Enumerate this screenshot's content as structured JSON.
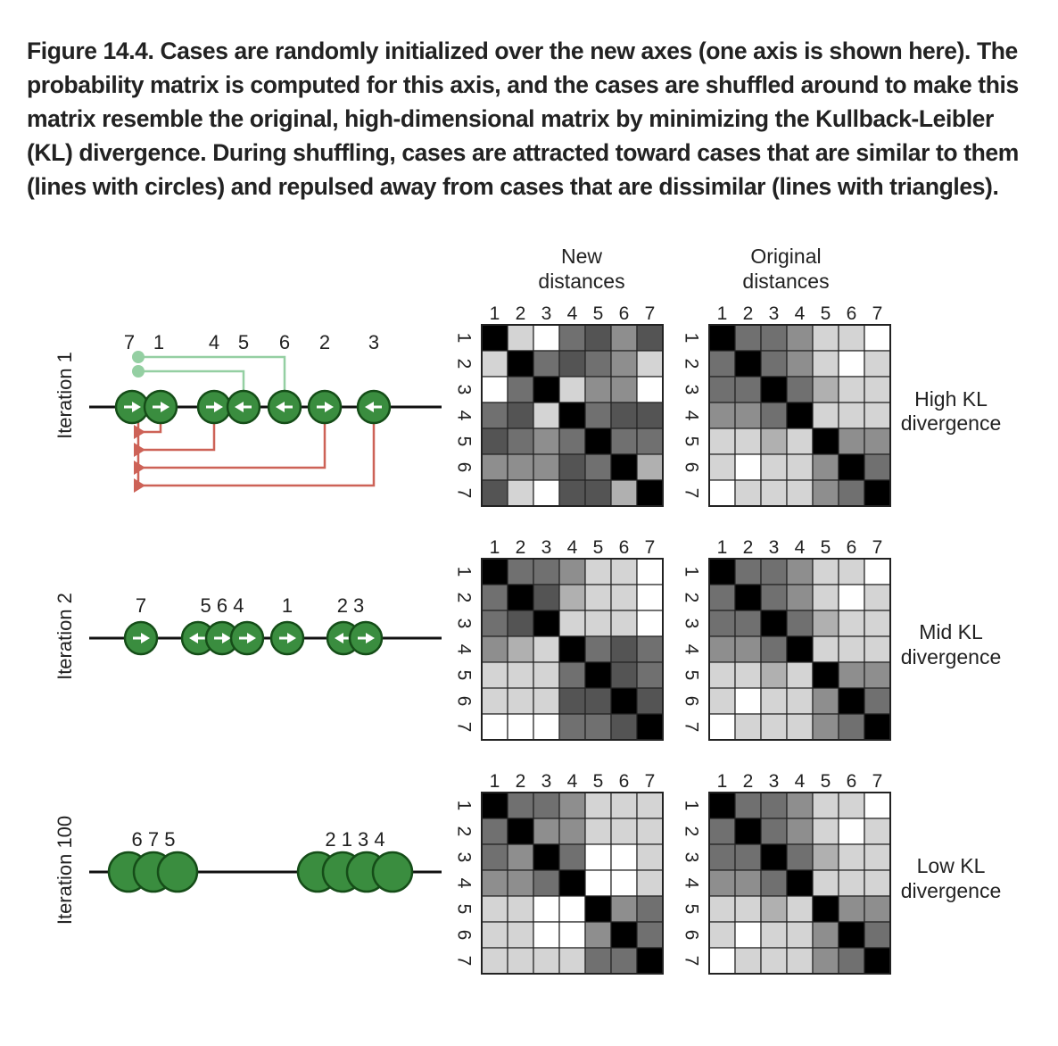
{
  "caption": "Figure 14.4. Cases are randomly initialized over the new axes (one axis is shown here). The probability matrix is computed for this axis, and the cases are shuffled around to make this matrix resemble the original, high-dimensional matrix by minimizing the Kullback-Leibler (KL) divergence. During shuffling, cases are attracted toward cases that are similar to them (lines with circles) and repulsed away from cases that are dissimilar (lines with triangles).",
  "headers": {
    "new": [
      "New",
      "distances"
    ],
    "original": [
      "Original",
      "distances"
    ]
  },
  "matrix_indices": [
    "1",
    "2",
    "3",
    "4",
    "5",
    "6",
    "7"
  ],
  "colors": {
    "node_fill": "#3a8d3f",
    "node_stroke": "#154d18",
    "arrow": "#ffffff",
    "attract_line": "#94cfa2",
    "repulse_line": "#cd6257",
    "axis": "#111111"
  },
  "shade_palette": [
    "#000000",
    "#545454",
    "#707070",
    "#8e8e8e",
    "#b0b0b0",
    "#d4d4d4",
    "#ffffff"
  ],
  "rows": [
    {
      "label": "Iteration 1",
      "divergence": [
        "High KL",
        "divergence"
      ],
      "top_labels": [
        "7",
        "1",
        "4",
        "5",
        "6",
        "2",
        "3"
      ],
      "nodes": [
        {
          "case": "7",
          "arrow": "right"
        },
        {
          "case": "1",
          "arrow": "right"
        },
        {
          "case": "4",
          "arrow": "right"
        },
        {
          "case": "5",
          "arrow": "left"
        },
        {
          "case": "6",
          "arrow": "left"
        },
        {
          "case": "2",
          "arrow": "right"
        },
        {
          "case": "3",
          "arrow": "left"
        }
      ],
      "new_matrix": [
        [
          0,
          5,
          6,
          2,
          1,
          3,
          1
        ],
        [
          5,
          0,
          2,
          1,
          2,
          3,
          5
        ],
        [
          6,
          2,
          0,
          5,
          3,
          3,
          6
        ],
        [
          2,
          1,
          5,
          0,
          2,
          1,
          1
        ],
        [
          1,
          2,
          3,
          2,
          0,
          2,
          2
        ],
        [
          3,
          3,
          3,
          1,
          2,
          0,
          4
        ],
        [
          1,
          5,
          6,
          1,
          1,
          4,
          0
        ]
      ],
      "original_matrix": [
        [
          0,
          2,
          2,
          3,
          5,
          5,
          6
        ],
        [
          2,
          0,
          2,
          3,
          5,
          6,
          5
        ],
        [
          2,
          2,
          0,
          2,
          4,
          5,
          5
        ],
        [
          3,
          3,
          2,
          0,
          5,
          5,
          5
        ],
        [
          5,
          5,
          4,
          5,
          0,
          3,
          3
        ],
        [
          5,
          6,
          5,
          5,
          3,
          0,
          2
        ],
        [
          6,
          5,
          5,
          5,
          3,
          2,
          0
        ]
      ]
    },
    {
      "label": "Iteration 2",
      "divergence": [
        "Mid KL",
        "divergence"
      ],
      "top_labels": [
        "7",
        "5 6 4",
        "1",
        "2 3"
      ],
      "nodes": [
        {
          "case": "7",
          "arrow": "right"
        },
        {
          "case": "5",
          "arrow": "left"
        },
        {
          "case": "6",
          "arrow": "right"
        },
        {
          "case": "4",
          "arrow": "right"
        },
        {
          "case": "1",
          "arrow": "right"
        },
        {
          "case": "2",
          "arrow": "left"
        },
        {
          "case": "3",
          "arrow": "right"
        }
      ],
      "new_matrix": [
        [
          0,
          2,
          2,
          3,
          5,
          5,
          6
        ],
        [
          2,
          0,
          1,
          4,
          5,
          5,
          6
        ],
        [
          2,
          1,
          0,
          5,
          5,
          5,
          6
        ],
        [
          3,
          4,
          5,
          0,
          2,
          1,
          2
        ],
        [
          5,
          5,
          5,
          2,
          0,
          1,
          2
        ],
        [
          5,
          5,
          5,
          1,
          1,
          0,
          1
        ],
        [
          6,
          6,
          6,
          2,
          2,
          1,
          0
        ]
      ],
      "original_matrix": [
        [
          0,
          2,
          2,
          3,
          5,
          5,
          6
        ],
        [
          2,
          0,
          2,
          3,
          5,
          6,
          5
        ],
        [
          2,
          2,
          0,
          2,
          4,
          5,
          5
        ],
        [
          3,
          3,
          2,
          0,
          5,
          5,
          5
        ],
        [
          5,
          5,
          4,
          5,
          0,
          3,
          3
        ],
        [
          5,
          6,
          5,
          5,
          3,
          0,
          2
        ],
        [
          6,
          5,
          5,
          5,
          3,
          2,
          0
        ]
      ]
    },
    {
      "label": "Iteration 100",
      "divergence": [
        "Low KL",
        "divergence"
      ],
      "top_labels": [
        "6 7 5",
        "2 1 3 4"
      ],
      "nodes": [
        {
          "case": "6",
          "arrow": "none"
        },
        {
          "case": "7",
          "arrow": "none"
        },
        {
          "case": "5",
          "arrow": "none"
        },
        {
          "case": "2",
          "arrow": "none"
        },
        {
          "case": "1",
          "arrow": "none"
        },
        {
          "case": "3",
          "arrow": "none"
        },
        {
          "case": "4",
          "arrow": "none"
        }
      ],
      "new_matrix": [
        [
          0,
          2,
          2,
          3,
          5,
          5,
          5
        ],
        [
          2,
          0,
          3,
          3,
          5,
          5,
          5
        ],
        [
          2,
          3,
          0,
          2,
          6,
          6,
          5
        ],
        [
          3,
          3,
          2,
          0,
          6,
          6,
          5
        ],
        [
          5,
          5,
          6,
          6,
          0,
          3,
          2
        ],
        [
          5,
          5,
          6,
          6,
          3,
          0,
          2
        ],
        [
          5,
          5,
          5,
          5,
          2,
          2,
          0
        ]
      ],
      "original_matrix": [
        [
          0,
          2,
          2,
          3,
          5,
          5,
          6
        ],
        [
          2,
          0,
          2,
          3,
          5,
          6,
          5
        ],
        [
          2,
          2,
          0,
          2,
          4,
          5,
          5
        ],
        [
          3,
          3,
          2,
          0,
          5,
          5,
          5
        ],
        [
          5,
          5,
          4,
          5,
          0,
          3,
          3
        ],
        [
          5,
          6,
          5,
          5,
          3,
          0,
          2
        ],
        [
          6,
          5,
          5,
          5,
          3,
          2,
          0
        ]
      ]
    }
  ]
}
